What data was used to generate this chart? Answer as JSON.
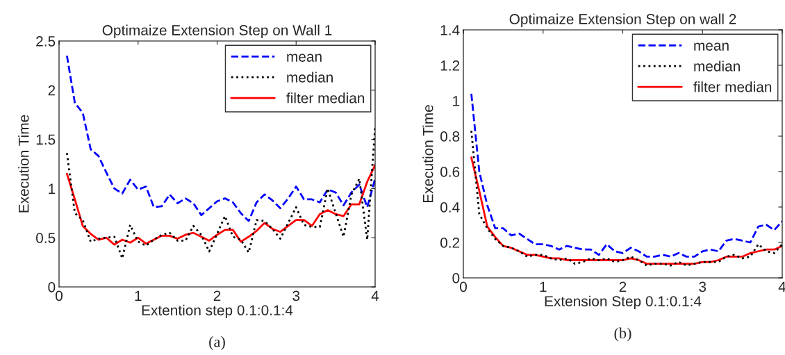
{
  "chart_data": [
    {
      "type": "line",
      "title": "Optimaize Extension Step on Wall 1",
      "xlabel": "Extention step 0.1:0.1:4",
      "ylabel": "Execution Time",
      "x": [
        0.1,
        0.2,
        0.3,
        0.4,
        0.5,
        0.6,
        0.7,
        0.8,
        0.9,
        1.0,
        1.1,
        1.2,
        1.3,
        1.4,
        1.5,
        1.6,
        1.7,
        1.8,
        1.9,
        2.0,
        2.1,
        2.2,
        2.3,
        2.4,
        2.5,
        2.6,
        2.7,
        2.8,
        2.9,
        3.0,
        3.1,
        3.2,
        3.3,
        3.4,
        3.5,
        3.6,
        3.7,
        3.8,
        3.9,
        4.0
      ],
      "series": [
        {
          "name": "mean",
          "color": "#0000ff",
          "line_style": "dashed",
          "values": [
            2.35,
            1.87,
            1.77,
            1.4,
            1.33,
            1.16,
            1.0,
            0.95,
            1.09,
            0.99,
            1.02,
            0.81,
            0.82,
            0.94,
            0.85,
            0.9,
            0.85,
            0.73,
            0.8,
            0.87,
            0.9,
            0.86,
            0.75,
            0.67,
            0.86,
            0.94,
            0.88,
            0.8,
            0.9,
            1.02,
            0.89,
            0.89,
            0.86,
            0.99,
            0.96,
            0.83,
            0.96,
            1.04,
            0.81,
            1.1
          ]
        },
        {
          "name": "median",
          "color": "#000000",
          "line_style": "dotted",
          "values": [
            1.36,
            0.75,
            0.68,
            0.46,
            0.49,
            0.5,
            0.51,
            0.29,
            0.63,
            0.46,
            0.42,
            0.48,
            0.53,
            0.55,
            0.47,
            0.47,
            0.62,
            0.53,
            0.36,
            0.54,
            0.72,
            0.51,
            0.48,
            0.35,
            0.68,
            0.67,
            0.59,
            0.49,
            0.65,
            0.81,
            0.63,
            0.61,
            0.61,
            1.0,
            0.75,
            0.51,
            0.94,
            1.1,
            0.48,
            1.63
          ]
        },
        {
          "name": "filter median",
          "color": "#ff0000",
          "line_style": "solid",
          "values": [
            1.15,
            0.89,
            0.62,
            0.54,
            0.48,
            0.5,
            0.43,
            0.48,
            0.45,
            0.5,
            0.44,
            0.48,
            0.52,
            0.52,
            0.49,
            0.53,
            0.55,
            0.51,
            0.47,
            0.53,
            0.58,
            0.58,
            0.46,
            0.51,
            0.57,
            0.65,
            0.59,
            0.56,
            0.62,
            0.68,
            0.68,
            0.62,
            0.74,
            0.78,
            0.74,
            0.72,
            0.84,
            0.84,
            1.07,
            1.24
          ]
        }
      ],
      "xlim": [
        0,
        4
      ],
      "xticks": [
        0,
        1,
        2,
        3,
        4
      ],
      "ylim": [
        0,
        2.5
      ],
      "yticks": [
        0,
        0.5,
        1,
        1.5,
        2,
        2.5
      ],
      "grid": false,
      "legend": "top right",
      "annotations": [
        "(a)"
      ]
    },
    {
      "type": "line",
      "title": "Optimaize Extension Step on wall 2",
      "xlabel": "Extension Step 0.1:0.1:4",
      "ylabel": "Execution Time",
      "x": [
        0.1,
        0.2,
        0.3,
        0.4,
        0.5,
        0.6,
        0.7,
        0.8,
        0.9,
        1.0,
        1.1,
        1.2,
        1.3,
        1.4,
        1.5,
        1.6,
        1.7,
        1.8,
        1.9,
        2.0,
        2.1,
        2.2,
        2.3,
        2.4,
        2.5,
        2.6,
        2.7,
        2.8,
        2.9,
        3.0,
        3.1,
        3.2,
        3.3,
        3.4,
        3.5,
        3.6,
        3.7,
        3.8,
        3.9,
        4.0
      ],
      "series": [
        {
          "name": "mean",
          "color": "#0000ff",
          "line_style": "dashed",
          "values": [
            1.04,
            0.6,
            0.41,
            0.28,
            0.28,
            0.24,
            0.25,
            0.22,
            0.19,
            0.19,
            0.18,
            0.16,
            0.18,
            0.17,
            0.16,
            0.16,
            0.13,
            0.19,
            0.15,
            0.14,
            0.17,
            0.15,
            0.12,
            0.12,
            0.13,
            0.12,
            0.14,
            0.12,
            0.12,
            0.15,
            0.16,
            0.15,
            0.21,
            0.22,
            0.21,
            0.2,
            0.29,
            0.3,
            0.27,
            0.32
          ]
        },
        {
          "name": "median",
          "color": "#000000",
          "line_style": "dotted",
          "values": [
            0.83,
            0.36,
            0.28,
            0.22,
            0.18,
            0.17,
            0.15,
            0.12,
            0.13,
            0.13,
            0.11,
            0.1,
            0.11,
            0.08,
            0.09,
            0.11,
            0.1,
            0.11,
            0.09,
            0.1,
            0.12,
            0.1,
            0.07,
            0.08,
            0.08,
            0.07,
            0.09,
            0.07,
            0.08,
            0.09,
            0.09,
            0.09,
            0.12,
            0.13,
            0.11,
            0.12,
            0.19,
            0.15,
            0.14,
            0.19
          ]
        },
        {
          "name": "filter median",
          "color": "#ff0000",
          "line_style": "solid",
          "values": [
            0.68,
            0.49,
            0.29,
            0.23,
            0.18,
            0.17,
            0.15,
            0.13,
            0.13,
            0.12,
            0.11,
            0.11,
            0.1,
            0.1,
            0.1,
            0.1,
            0.1,
            0.1,
            0.1,
            0.1,
            0.11,
            0.1,
            0.08,
            0.08,
            0.08,
            0.08,
            0.08,
            0.08,
            0.08,
            0.09,
            0.09,
            0.1,
            0.12,
            0.12,
            0.12,
            0.14,
            0.15,
            0.16,
            0.16,
            0.18
          ]
        }
      ],
      "xlim": [
        0,
        4
      ],
      "xticks": [
        0,
        1,
        2,
        3,
        4
      ],
      "ylim": [
        0,
        1.4
      ],
      "yticks": [
        0,
        0.2,
        0.4,
        0.6,
        0.8,
        1,
        1.2,
        1.4
      ],
      "grid": false,
      "legend": "top right",
      "annotations": [
        "(b)"
      ]
    }
  ]
}
